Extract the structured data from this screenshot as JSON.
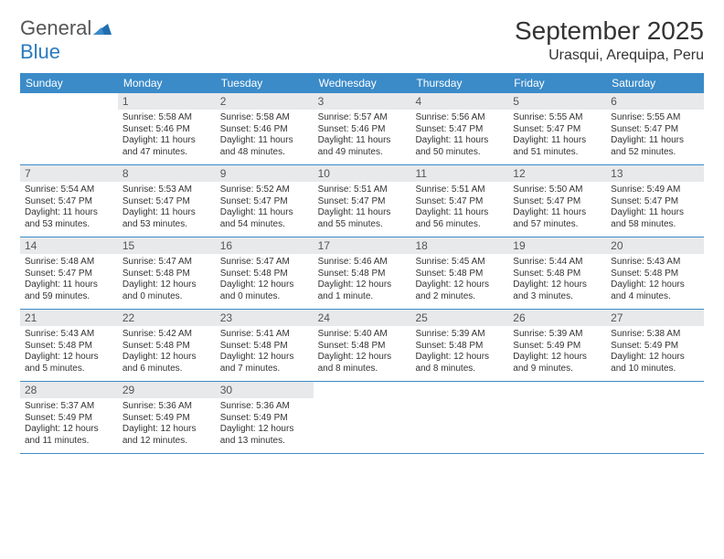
{
  "logo": {
    "text_general": "General",
    "text_blue": "Blue"
  },
  "title": "September 2025",
  "location": "Urasqui, Arequipa, Peru",
  "colors": {
    "header_bg": "#3b8bc9",
    "header_text": "#ffffff",
    "date_bg": "#e8e9ea",
    "date_text": "#555555",
    "body_text": "#333333",
    "rule": "#3b8bc9",
    "logo_gray": "#555555",
    "logo_blue": "#2b7bbf"
  },
  "day_names": [
    "Sunday",
    "Monday",
    "Tuesday",
    "Wednesday",
    "Thursday",
    "Friday",
    "Saturday"
  ],
  "weeks": [
    [
      {
        "empty": true
      },
      {
        "date": "1",
        "sunrise": "Sunrise: 5:58 AM",
        "sunset": "Sunset: 5:46 PM",
        "daylight": "Daylight: 11 hours and 47 minutes."
      },
      {
        "date": "2",
        "sunrise": "Sunrise: 5:58 AM",
        "sunset": "Sunset: 5:46 PM",
        "daylight": "Daylight: 11 hours and 48 minutes."
      },
      {
        "date": "3",
        "sunrise": "Sunrise: 5:57 AM",
        "sunset": "Sunset: 5:46 PM",
        "daylight": "Daylight: 11 hours and 49 minutes."
      },
      {
        "date": "4",
        "sunrise": "Sunrise: 5:56 AM",
        "sunset": "Sunset: 5:47 PM",
        "daylight": "Daylight: 11 hours and 50 minutes."
      },
      {
        "date": "5",
        "sunrise": "Sunrise: 5:55 AM",
        "sunset": "Sunset: 5:47 PM",
        "daylight": "Daylight: 11 hours and 51 minutes."
      },
      {
        "date": "6",
        "sunrise": "Sunrise: 5:55 AM",
        "sunset": "Sunset: 5:47 PM",
        "daylight": "Daylight: 11 hours and 52 minutes."
      }
    ],
    [
      {
        "date": "7",
        "sunrise": "Sunrise: 5:54 AM",
        "sunset": "Sunset: 5:47 PM",
        "daylight": "Daylight: 11 hours and 53 minutes."
      },
      {
        "date": "8",
        "sunrise": "Sunrise: 5:53 AM",
        "sunset": "Sunset: 5:47 PM",
        "daylight": "Daylight: 11 hours and 53 minutes."
      },
      {
        "date": "9",
        "sunrise": "Sunrise: 5:52 AM",
        "sunset": "Sunset: 5:47 PM",
        "daylight": "Daylight: 11 hours and 54 minutes."
      },
      {
        "date": "10",
        "sunrise": "Sunrise: 5:51 AM",
        "sunset": "Sunset: 5:47 PM",
        "daylight": "Daylight: 11 hours and 55 minutes."
      },
      {
        "date": "11",
        "sunrise": "Sunrise: 5:51 AM",
        "sunset": "Sunset: 5:47 PM",
        "daylight": "Daylight: 11 hours and 56 minutes."
      },
      {
        "date": "12",
        "sunrise": "Sunrise: 5:50 AM",
        "sunset": "Sunset: 5:47 PM",
        "daylight": "Daylight: 11 hours and 57 minutes."
      },
      {
        "date": "13",
        "sunrise": "Sunrise: 5:49 AM",
        "sunset": "Sunset: 5:47 PM",
        "daylight": "Daylight: 11 hours and 58 minutes."
      }
    ],
    [
      {
        "date": "14",
        "sunrise": "Sunrise: 5:48 AM",
        "sunset": "Sunset: 5:47 PM",
        "daylight": "Daylight: 11 hours and 59 minutes."
      },
      {
        "date": "15",
        "sunrise": "Sunrise: 5:47 AM",
        "sunset": "Sunset: 5:48 PM",
        "daylight": "Daylight: 12 hours and 0 minutes."
      },
      {
        "date": "16",
        "sunrise": "Sunrise: 5:47 AM",
        "sunset": "Sunset: 5:48 PM",
        "daylight": "Daylight: 12 hours and 0 minutes."
      },
      {
        "date": "17",
        "sunrise": "Sunrise: 5:46 AM",
        "sunset": "Sunset: 5:48 PM",
        "daylight": "Daylight: 12 hours and 1 minute."
      },
      {
        "date": "18",
        "sunrise": "Sunrise: 5:45 AM",
        "sunset": "Sunset: 5:48 PM",
        "daylight": "Daylight: 12 hours and 2 minutes."
      },
      {
        "date": "19",
        "sunrise": "Sunrise: 5:44 AM",
        "sunset": "Sunset: 5:48 PM",
        "daylight": "Daylight: 12 hours and 3 minutes."
      },
      {
        "date": "20",
        "sunrise": "Sunrise: 5:43 AM",
        "sunset": "Sunset: 5:48 PM",
        "daylight": "Daylight: 12 hours and 4 minutes."
      }
    ],
    [
      {
        "date": "21",
        "sunrise": "Sunrise: 5:43 AM",
        "sunset": "Sunset: 5:48 PM",
        "daylight": "Daylight: 12 hours and 5 minutes."
      },
      {
        "date": "22",
        "sunrise": "Sunrise: 5:42 AM",
        "sunset": "Sunset: 5:48 PM",
        "daylight": "Daylight: 12 hours and 6 minutes."
      },
      {
        "date": "23",
        "sunrise": "Sunrise: 5:41 AM",
        "sunset": "Sunset: 5:48 PM",
        "daylight": "Daylight: 12 hours and 7 minutes."
      },
      {
        "date": "24",
        "sunrise": "Sunrise: 5:40 AM",
        "sunset": "Sunset: 5:48 PM",
        "daylight": "Daylight: 12 hours and 8 minutes."
      },
      {
        "date": "25",
        "sunrise": "Sunrise: 5:39 AM",
        "sunset": "Sunset: 5:48 PM",
        "daylight": "Daylight: 12 hours and 8 minutes."
      },
      {
        "date": "26",
        "sunrise": "Sunrise: 5:39 AM",
        "sunset": "Sunset: 5:49 PM",
        "daylight": "Daylight: 12 hours and 9 minutes."
      },
      {
        "date": "27",
        "sunrise": "Sunrise: 5:38 AM",
        "sunset": "Sunset: 5:49 PM",
        "daylight": "Daylight: 12 hours and 10 minutes."
      }
    ],
    [
      {
        "date": "28",
        "sunrise": "Sunrise: 5:37 AM",
        "sunset": "Sunset: 5:49 PM",
        "daylight": "Daylight: 12 hours and 11 minutes."
      },
      {
        "date": "29",
        "sunrise": "Sunrise: 5:36 AM",
        "sunset": "Sunset: 5:49 PM",
        "daylight": "Daylight: 12 hours and 12 minutes."
      },
      {
        "date": "30",
        "sunrise": "Sunrise: 5:36 AM",
        "sunset": "Sunset: 5:49 PM",
        "daylight": "Daylight: 12 hours and 13 minutes."
      },
      {
        "empty": true
      },
      {
        "empty": true
      },
      {
        "empty": true
      },
      {
        "empty": true
      }
    ]
  ]
}
